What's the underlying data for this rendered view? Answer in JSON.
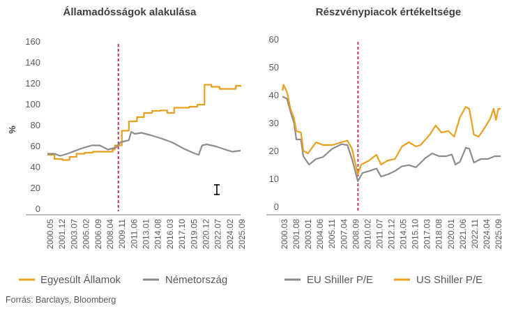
{
  "colors": {
    "orange": "#E8A020",
    "grey": "#8C8C8C",
    "marker": "#C0395A",
    "axis": "#A6A6A6"
  },
  "source": "Forrás: Barclays, Bloomberg",
  "chart_data": [
    {
      "type": "line",
      "title": "Államadósságok alakulása",
      "ylabel": "%",
      "xlabel": "",
      "ylim": [
        0,
        160
      ],
      "yticks": [
        "0",
        "20",
        "40",
        "60",
        "80",
        "100",
        "120",
        "140",
        "160"
      ],
      "xlim": [
        2000.4,
        2025.72
      ],
      "xtick_labels": [
        "2000.05",
        "2001.12",
        "2003.07",
        "2005.02",
        "2006.09",
        "2008.04",
        "2009.11",
        "2011.06",
        "2013.01",
        "2014.08",
        "2016.03",
        "2017.10",
        "2019.05",
        "2020.12",
        "2022.07",
        "2024.02",
        "2025.09"
      ],
      "grid": false,
      "legend_position": "bottom",
      "vertical_marker": 2009.7,
      "series": [
        {
          "name": "Egyesült Államok",
          "color": "#E8A020",
          "step": true,
          "points": [
            [
              2000.4,
              54
            ],
            [
              2001.32,
              50
            ],
            [
              2002.38,
              49
            ],
            [
              2003.3,
              52
            ],
            [
              2004.21,
              55
            ],
            [
              2005.28,
              56
            ],
            [
              2006.35,
              57
            ],
            [
              2008.94,
              59
            ],
            [
              2009.25,
              63
            ],
            [
              2010.16,
              77
            ],
            [
              2011.08,
              86
            ],
            [
              2012.14,
              90
            ],
            [
              2013.06,
              94
            ],
            [
              2014.13,
              96
            ],
            [
              2015.19,
              96.5
            ],
            [
              2016.11,
              94
            ],
            [
              2017.02,
              99
            ],
            [
              2019.0,
              100
            ],
            [
              2020.07,
              102
            ],
            [
              2020.99,
              121
            ],
            [
              2021.9,
              119
            ],
            [
              2022.97,
              117
            ],
            [
              2025.11,
              120
            ],
            [
              2025.72,
              119
            ]
          ]
        },
        {
          "name": "Németország",
          "color": "#8C8C8C",
          "step": false,
          "points": [
            [
              2000.4,
              55
            ],
            [
              2001.32,
              55
            ],
            [
              2002.08,
              53
            ],
            [
              2002.99,
              55
            ],
            [
              2003.91,
              57.5
            ],
            [
              2004.82,
              60
            ],
            [
              2006.2,
              63
            ],
            [
              2007.26,
              63
            ],
            [
              2008.33,
              59
            ],
            [
              2009.4,
              61
            ],
            [
              2010.0,
              66
            ],
            [
              2011.08,
              68
            ],
            [
              2011.38,
              76
            ],
            [
              2011.84,
              74
            ],
            [
              2012.75,
              75
            ],
            [
              2013.82,
              73
            ],
            [
              2015.19,
              70
            ],
            [
              2016.72,
              66
            ],
            [
              2018.24,
              60
            ],
            [
              2019.46,
              56
            ],
            [
              2020.23,
              54
            ],
            [
              2020.68,
              63
            ],
            [
              2021.29,
              64
            ],
            [
              2022.51,
              62
            ],
            [
              2023.73,
              59
            ],
            [
              2024.65,
              57
            ],
            [
              2025.72,
              58
            ]
          ]
        }
      ]
    },
    {
      "type": "line",
      "title": "Részvénypiacok értékeltsége",
      "ylabel": "",
      "xlabel": "",
      "ylim": [
        0,
        60
      ],
      "yticks": [
        "0",
        "10",
        "20",
        "30",
        "40",
        "50",
        "60"
      ],
      "xlim": [
        2000.2,
        2025.75
      ],
      "xtick_labels": [
        "2000.03",
        "2001.08",
        "2003.01",
        "2004.06",
        "2005.11",
        "2007.04",
        "2008.09",
        "2010.02",
        "2011.07",
        "2012.12",
        "2014.05",
        "2015.10",
        "2017.03",
        "2018.08",
        "2020.01",
        "2021.06",
        "2022.11",
        "2024.04",
        "2025.09"
      ],
      "grid": false,
      "legend_position": "bottom",
      "vertical_marker": 2009.05,
      "series": [
        {
          "name": "EU Shiller P/E",
          "color": "#8C8C8C",
          "points": [
            [
              2000.2,
              40.4
            ],
            [
              2000.74,
              39.6
            ],
            [
              2001.15,
              35
            ],
            [
              2001.56,
              31
            ],
            [
              2001.83,
              25
            ],
            [
              2002.37,
              25
            ],
            [
              2002.65,
              19
            ],
            [
              2003.33,
              16
            ],
            [
              2004.14,
              18
            ],
            [
              2004.96,
              18.7
            ],
            [
              2006.04,
              21.7
            ],
            [
              2007.13,
              23.3
            ],
            [
              2007.81,
              23
            ],
            [
              2008.35,
              18
            ],
            [
              2008.76,
              13.3
            ],
            [
              2009.03,
              10
            ],
            [
              2009.58,
              13
            ],
            [
              2010.39,
              13.7
            ],
            [
              2011.21,
              14.6
            ],
            [
              2011.75,
              11.7
            ],
            [
              2012.57,
              12.5
            ],
            [
              2013.38,
              13.7
            ],
            [
              2014.2,
              15.4
            ],
            [
              2015.01,
              15.8
            ],
            [
              2015.83,
              15
            ],
            [
              2016.92,
              18.3
            ],
            [
              2017.73,
              20
            ],
            [
              2018.55,
              19
            ],
            [
              2019.36,
              19
            ],
            [
              2020.04,
              19.6
            ],
            [
              2020.45,
              16
            ],
            [
              2020.99,
              17
            ],
            [
              2021.67,
              22
            ],
            [
              2022.08,
              21.7
            ],
            [
              2022.62,
              16.7
            ],
            [
              2023.44,
              18
            ],
            [
              2024.25,
              18
            ],
            [
              2025.07,
              19
            ],
            [
              2025.75,
              19
            ]
          ]
        },
        {
          "name": "US Shiller P/E",
          "color": "#E8A020",
          "points": [
            [
              2000.2,
              42.5
            ],
            [
              2000.34,
              44.6
            ],
            [
              2000.74,
              42
            ],
            [
              2001.15,
              36
            ],
            [
              2001.56,
              32.5
            ],
            [
              2001.83,
              28
            ],
            [
              2002.37,
              27.5
            ],
            [
              2002.65,
              21
            ],
            [
              2003.19,
              20
            ],
            [
              2004.14,
              24
            ],
            [
              2004.96,
              23
            ],
            [
              2006.04,
              23
            ],
            [
              2007.13,
              24
            ],
            [
              2007.81,
              24.6
            ],
            [
              2008.35,
              21.7
            ],
            [
              2008.76,
              16
            ],
            [
              2009.03,
              12.5
            ],
            [
              2009.44,
              16
            ],
            [
              2010.39,
              17.5
            ],
            [
              2011.21,
              19.5
            ],
            [
              2011.75,
              16
            ],
            [
              2012.57,
              17.5
            ],
            [
              2013.38,
              18
            ],
            [
              2014.2,
              22.5
            ],
            [
              2015.01,
              24
            ],
            [
              2015.83,
              22.5
            ],
            [
              2016.37,
              23
            ],
            [
              2017.46,
              26.7
            ],
            [
              2018.14,
              30
            ],
            [
              2018.82,
              27.5
            ],
            [
              2019.63,
              28
            ],
            [
              2020.31,
              26
            ],
            [
              2020.99,
              33
            ],
            [
              2021.67,
              36.7
            ],
            [
              2022.08,
              36
            ],
            [
              2022.62,
              26.7
            ],
            [
              2023.17,
              26
            ],
            [
              2023.85,
              29
            ],
            [
              2024.53,
              32.5
            ],
            [
              2024.93,
              36
            ],
            [
              2025.2,
              32
            ],
            [
              2025.48,
              36
            ],
            [
              2025.75,
              36
            ]
          ]
        }
      ]
    }
  ]
}
